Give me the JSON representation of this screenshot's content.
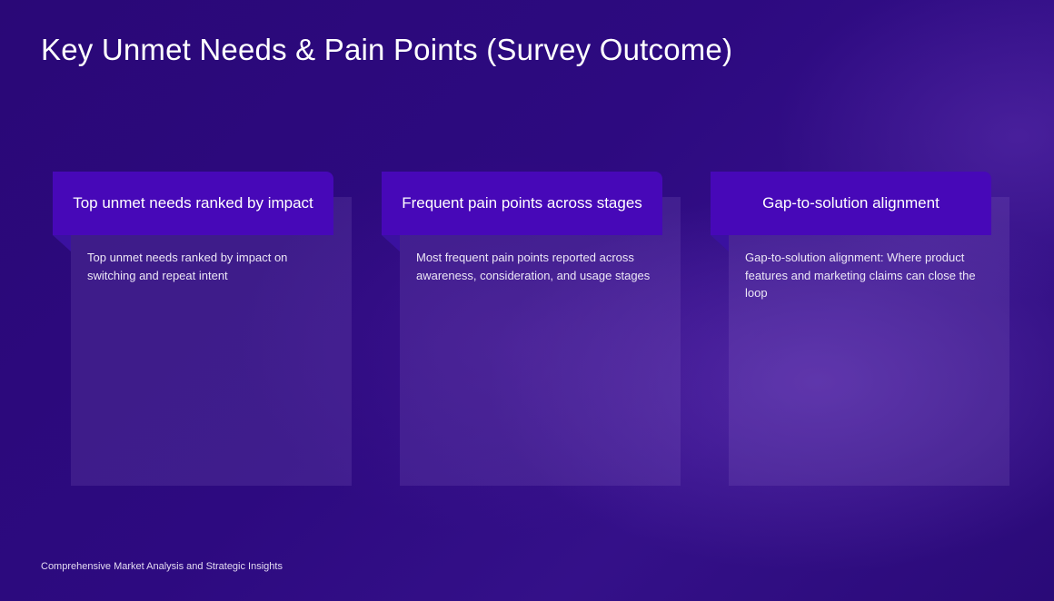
{
  "slide": {
    "title": "Key Unmet Needs & Pain Points (Survey Outcome)",
    "footer": "Comprehensive Market Analysis and Strategic Insights"
  },
  "cards": [
    {
      "heading": "Top unmet needs ranked by impact",
      "text": "Top unmet needs ranked by impact on switching and repeat intent"
    },
    {
      "heading": "Frequent pain points across stages",
      "text": "Most frequent pain points reported across awareness, consideration, and usage stages"
    },
    {
      "heading": "Gap-to-solution alignment",
      "text": "Gap-to-solution alignment: Where product features and marketing claims can close the loop"
    }
  ],
  "colors": {
    "background": "#2d0a80",
    "card_header": "#4708b8",
    "text": "#ffffff"
  }
}
